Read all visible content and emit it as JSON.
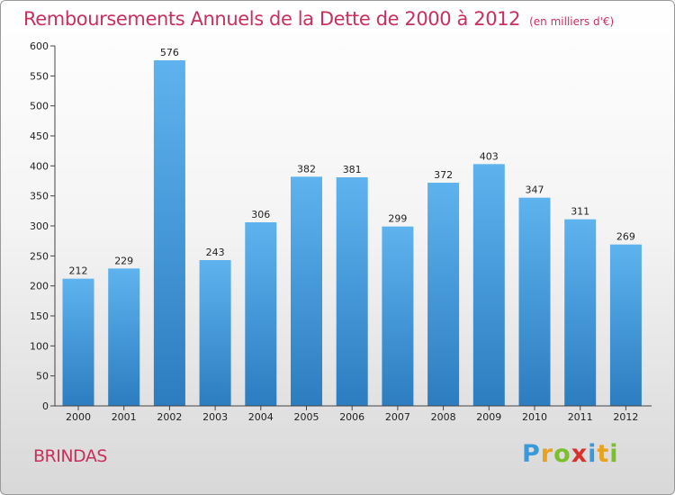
{
  "title": "Remboursements Annuels de la Dette de 2000 à 2012",
  "subtitle": "(en milliers d'€)",
  "commune": "BRINDAS",
  "logo": {
    "letters": [
      "P",
      "r",
      "o",
      "x",
      "i",
      "t",
      "i"
    ],
    "colors": [
      "#3a9ad9",
      "#e8a21b",
      "#7bbf2a",
      "#d8302a",
      "#3a9ad9",
      "#e8a21b",
      "#7bbf2a"
    ]
  },
  "colors": {
    "bar_light": "#5eb3ee",
    "bar_dark": "#2c7dc0",
    "title": "#c8305e"
  },
  "chart_data": {
    "type": "bar",
    "title": "Remboursements Annuels de la Dette de 2000 à 2012",
    "subtitle": "(en milliers d'€)",
    "categories": [
      "2000",
      "2001",
      "2002",
      "2003",
      "2004",
      "2005",
      "2006",
      "2007",
      "2008",
      "2009",
      "2010",
      "2011",
      "2012"
    ],
    "values": [
      212,
      229,
      576,
      243,
      306,
      382,
      381,
      299,
      372,
      403,
      347,
      311,
      269
    ],
    "ylim": [
      0,
      600
    ],
    "yticks": [
      0,
      50,
      100,
      150,
      200,
      250,
      300,
      350,
      400,
      450,
      500,
      550,
      600
    ],
    "grid": false,
    "legend": false,
    "data_labels": true
  }
}
